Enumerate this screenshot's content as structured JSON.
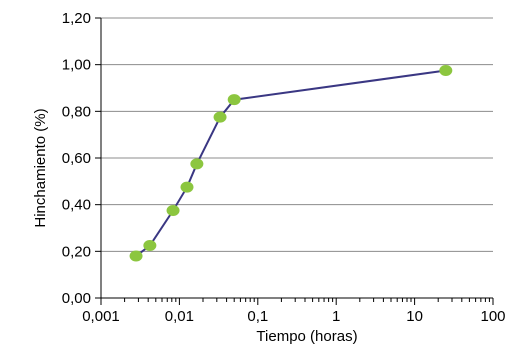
{
  "chart_data": {
    "type": "line",
    "title": "",
    "xlabel": "Tiempo (horas)",
    "ylabel": "Hinchamiento (%)",
    "x_scale": "log",
    "xlim": [
      0.001,
      100
    ],
    "ylim": [
      0,
      1.2
    ],
    "grid": {
      "horizontal": true,
      "vertical": false
    },
    "x_ticks": [
      "0,001",
      "0,01",
      "0,1",
      "1",
      "10",
      "100"
    ],
    "y_ticks": [
      "0,00",
      "0,20",
      "0,40",
      "0,60",
      "0,80",
      "1,00",
      "1,20"
    ],
    "series": [
      {
        "x": [
          0.0028,
          0.0042,
          0.0083,
          0.0125,
          0.0167,
          0.033,
          0.05,
          25
        ],
        "y": [
          0.18,
          0.225,
          0.375,
          0.475,
          0.575,
          0.775,
          0.85,
          0.975
        ]
      }
    ],
    "colors": {
      "line": "#3a3783",
      "marker": "#8cc63f",
      "grid": "#8c8c8c",
      "axis": "#000000"
    }
  }
}
